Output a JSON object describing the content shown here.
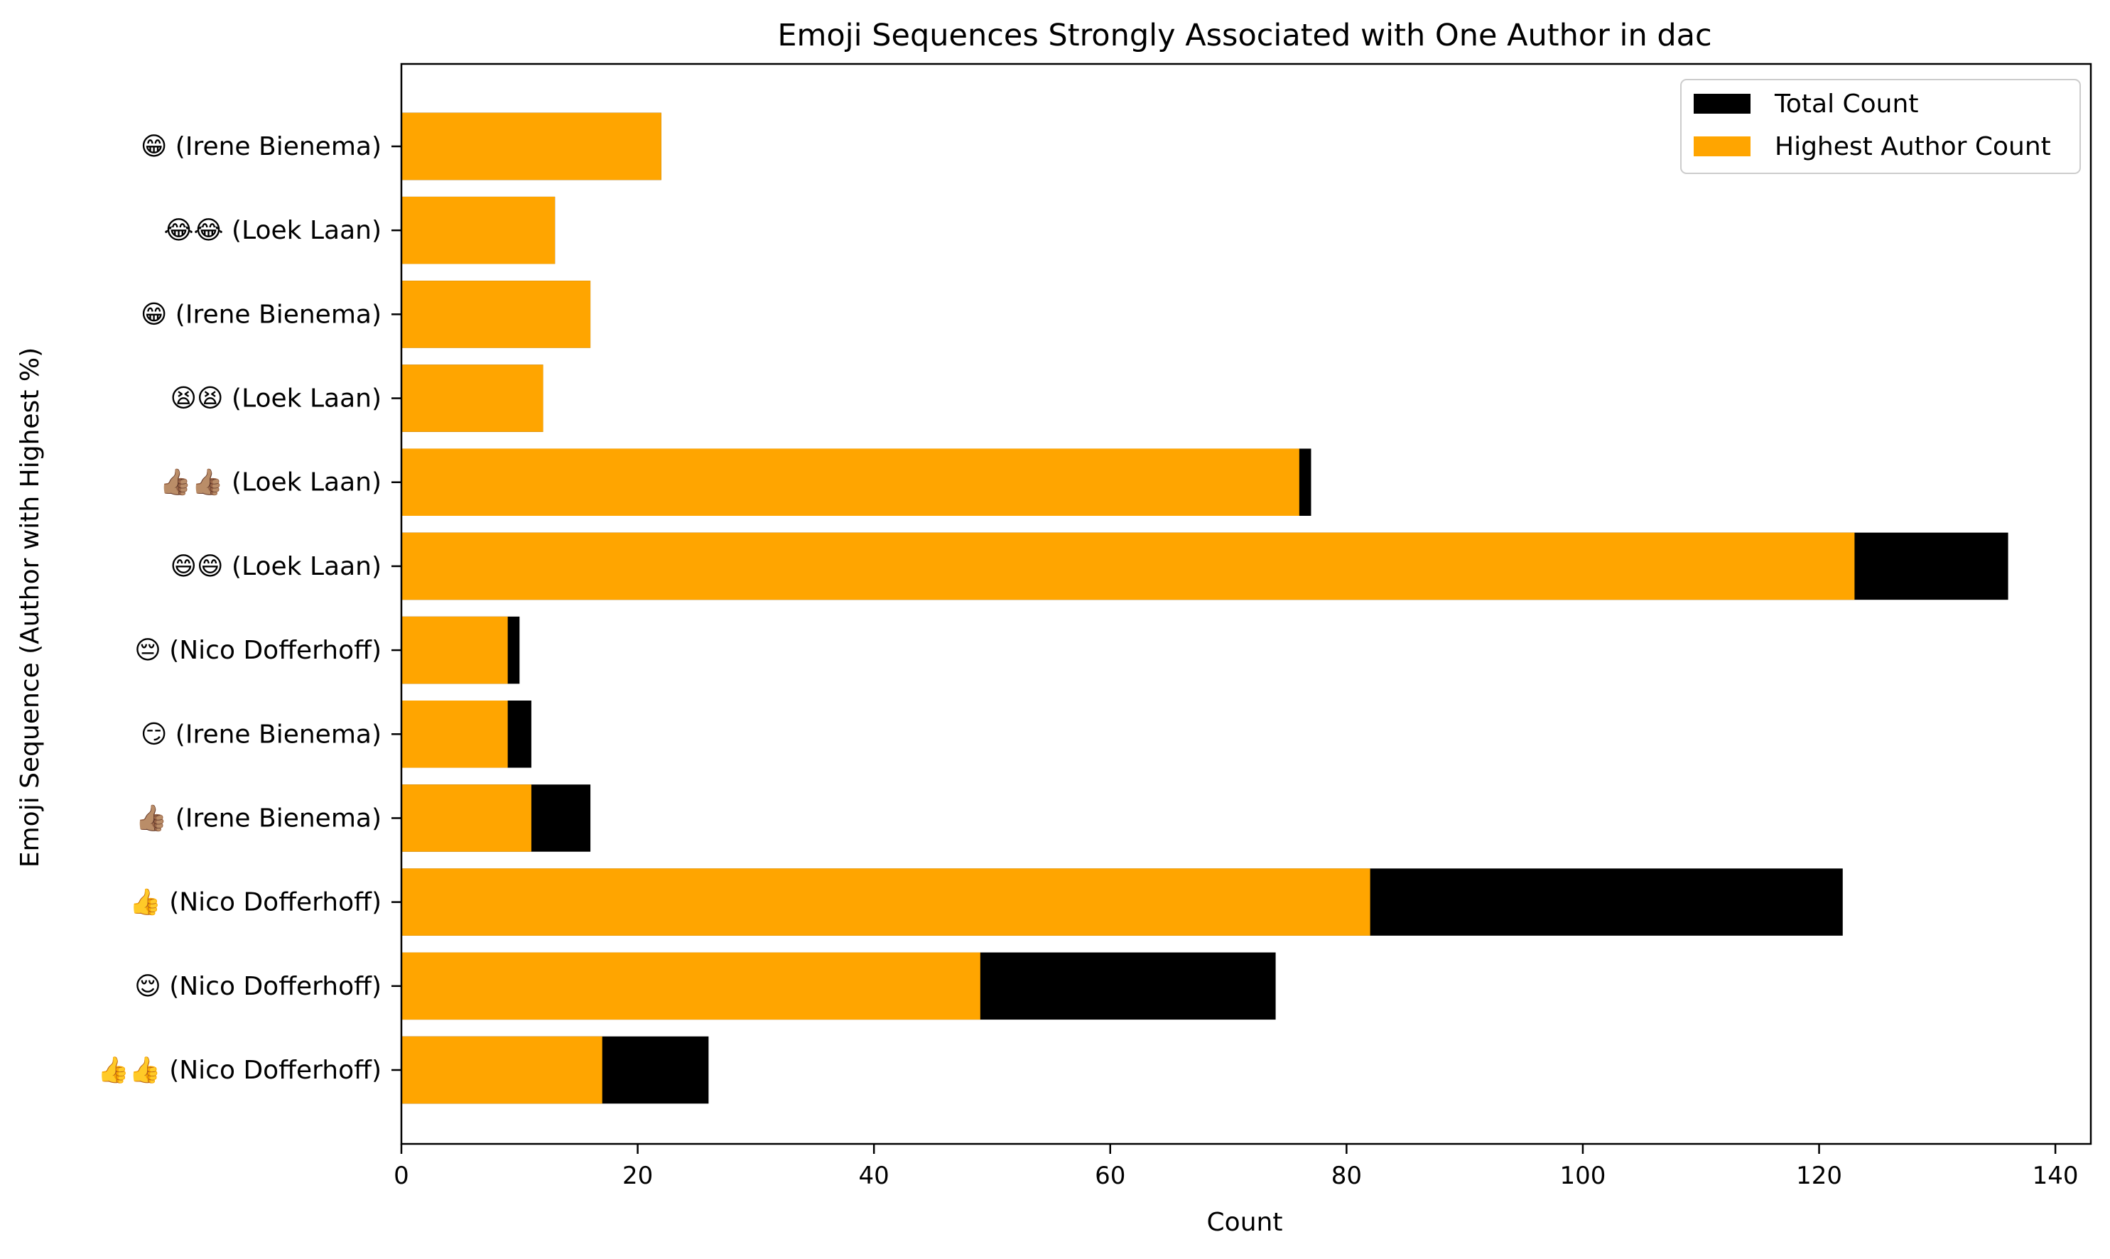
{
  "chart_data": {
    "type": "bar",
    "orientation": "horizontal",
    "stacking": "overlay",
    "title": "Emoji Sequences Strongly Associated with One Author in dac",
    "xlabel": "Count",
    "ylabel": "Emoji Sequence (Author with Highest %)",
    "xlim": [
      0,
      143
    ],
    "xticks": [
      "0",
      "20",
      "40",
      "60",
      "80",
      "100",
      "120",
      "140"
    ],
    "xtick_values": [
      0,
      20,
      40,
      60,
      80,
      100,
      120,
      140
    ],
    "grid": false,
    "legend_position": "top-right",
    "categories": [
      "😁 (Irene Bienema)",
      "😂😂 (Loek Laan)",
      "😁 (Irene Bienema)",
      "😫😫 (Loek Laan)",
      "👍🏽👍🏽 (Loek Laan)",
      "😄😄 (Loek Laan)",
      "😔 (Nico Dofferhoff)",
      "😏 (Irene Bienema)",
      "👍🏽 (Irene Bienema)",
      "👍 (Nico Dofferhoff)",
      "😌 (Nico Dofferhoff)",
      "👍👍 (Nico Dofferhoff)"
    ],
    "series": [
      {
        "name": "Total Count",
        "color": "#000000",
        "values": [
          22,
          13,
          16,
          12,
          77,
          136,
          10,
          11,
          16,
          122,
          74,
          26
        ]
      },
      {
        "name": "Highest Author Count",
        "color": "#FFA500",
        "values": [
          22,
          13,
          16,
          12,
          76,
          123,
          9,
          9,
          11,
          82,
          49,
          17
        ]
      }
    ]
  }
}
